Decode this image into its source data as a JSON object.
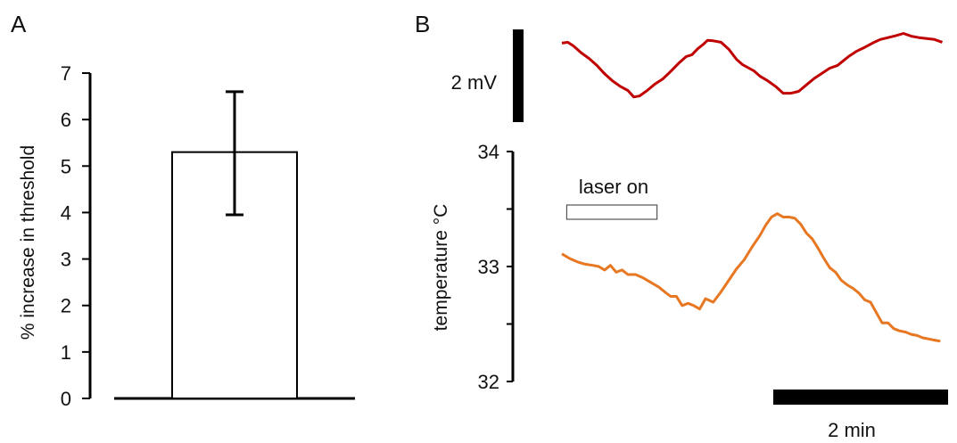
{
  "panel_a_label": "A",
  "panel_b_label": "B",
  "voltage_scale_label": "2 mV",
  "time_scale_label": "2 min",
  "laser_label": "laser on",
  "chart_data": [
    {
      "type": "bar",
      "panel": "A",
      "categories": [
        ""
      ],
      "values": [
        5.3
      ],
      "error": [
        {
          "low": 3.95,
          "high": 6.6
        }
      ],
      "ylabel": "% increase in threshold",
      "ylim": [
        0,
        7
      ],
      "yticks": [
        0,
        1,
        2,
        3,
        4,
        5,
        6,
        7
      ],
      "bar_color": "#ffffff",
      "edge_color": "#000000",
      "grid": false
    },
    {
      "type": "line",
      "panel": "B",
      "ylabel": "temperature °C",
      "ylim": [
        32,
        34
      ],
      "yticks": [
        32,
        33,
        34
      ],
      "grid": false,
      "x_unit": "min",
      "laser_on": {
        "start": 0.05,
        "end": 0.98
      },
      "series": [
        {
          "color": "#c00000",
          "unit": "mV",
          "x": [
            0,
            0.06,
            0.12,
            0.2,
            0.28,
            0.36,
            0.44,
            0.52,
            0.6,
            0.68,
            0.74,
            0.8,
            0.88,
            0.96,
            1.04,
            1.12,
            1.2,
            1.28,
            1.34,
            1.4,
            1.46,
            1.5,
            1.56,
            1.64,
            1.72,
            1.8,
            1.86,
            1.92,
            1.98,
            2.04,
            2.12,
            2.2,
            2.28,
            2.36,
            2.44,
            2.52,
            2.6,
            2.68,
            2.76,
            2.84,
            2.9,
            2.96,
            3.04,
            3.12,
            3.2,
            3.28,
            3.36,
            3.44,
            3.52,
            3.6,
            3.68,
            3.76,
            3.84,
            3.92
          ],
          "values": [
            2.28,
            2.3,
            2.22,
            2.07,
            1.95,
            1.8,
            1.62,
            1.47,
            1.35,
            1.26,
            1.12,
            1.14,
            1.26,
            1.4,
            1.51,
            1.67,
            1.84,
            1.99,
            2.03,
            2.16,
            2.26,
            2.34,
            2.33,
            2.3,
            2.15,
            1.93,
            1.82,
            1.75,
            1.68,
            1.57,
            1.47,
            1.35,
            1.2,
            1.2,
            1.24,
            1.38,
            1.52,
            1.63,
            1.74,
            1.8,
            1.9,
            2.0,
            2.11,
            2.19,
            2.28,
            2.36,
            2.4,
            2.44,
            2.49,
            2.43,
            2.4,
            2.38,
            2.36,
            2.3
          ]
        },
        {
          "color": "#e87722",
          "unit": "°C",
          "x": [
            0,
            0.08,
            0.16,
            0.24,
            0.32,
            0.38,
            0.44,
            0.5,
            0.56,
            0.62,
            0.68,
            0.76,
            0.84,
            0.92,
            1.0,
            1.06,
            1.12,
            1.18,
            1.24,
            1.3,
            1.36,
            1.42,
            1.48,
            1.56,
            1.64,
            1.72,
            1.8,
            1.88,
            1.96,
            2.04,
            2.1,
            2.16,
            2.22,
            2.28,
            2.34,
            2.4,
            2.46,
            2.52,
            2.58,
            2.64,
            2.7,
            2.76,
            2.82,
            2.88,
            2.94,
            3.0,
            3.06,
            3.12,
            3.18,
            3.24,
            3.3,
            3.36,
            3.42,
            3.48,
            3.54,
            3.6,
            3.66,
            3.72,
            3.78,
            3.84,
            3.9
          ],
          "values": [
            33.11,
            33.07,
            33.04,
            33.02,
            33.01,
            33.0,
            32.97,
            33.01,
            32.95,
            32.97,
            32.93,
            32.93,
            32.9,
            32.86,
            32.82,
            32.78,
            32.74,
            32.74,
            32.66,
            32.68,
            32.66,
            32.63,
            32.72,
            32.69,
            32.78,
            32.88,
            32.98,
            33.06,
            33.17,
            33.27,
            33.36,
            33.43,
            33.46,
            33.43,
            33.43,
            33.42,
            33.37,
            33.29,
            33.24,
            33.16,
            33.07,
            32.99,
            32.95,
            32.88,
            32.84,
            32.81,
            32.77,
            32.71,
            32.69,
            32.6,
            32.51,
            32.51,
            32.46,
            32.44,
            32.43,
            32.41,
            32.4,
            32.38,
            32.37,
            32.36,
            32.35
          ]
        }
      ]
    }
  ]
}
